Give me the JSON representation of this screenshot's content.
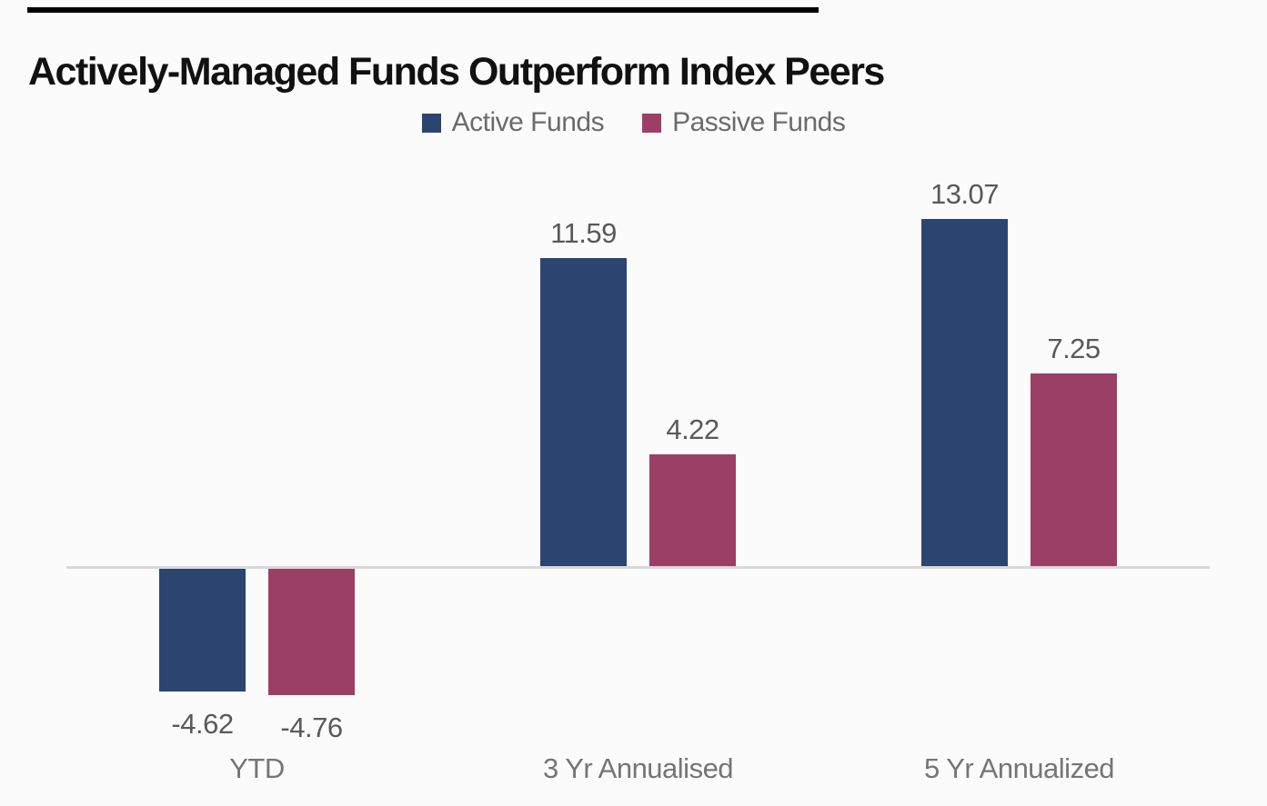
{
  "title": "Actively-Managed Funds Outperform Index Peers",
  "chart_data": {
    "type": "bar",
    "title": "Actively-Managed Funds Outperform Index Peers",
    "categories": [
      "YTD",
      "3 Yr Annualised",
      "5 Yr Annualized"
    ],
    "series": [
      {
        "name": "Active Funds",
        "color": "#2b4470",
        "values": [
          -4.62,
          11.59,
          13.07
        ]
      },
      {
        "name": "Passive Funds",
        "color": "#9c3f66",
        "values": [
          -4.76,
          4.22,
          7.25
        ]
      }
    ],
    "value_labels": {
      "Active Funds": [
        "-4.62",
        "11.59",
        "13.07"
      ],
      "Passive Funds": [
        "-4.76",
        "4.22",
        "7.25"
      ]
    },
    "xlabel": "",
    "ylabel": "",
    "ylim": [
      -6,
      15
    ],
    "grid": false,
    "zero_baseline": true,
    "legend_position": "top-center"
  },
  "colors": {
    "active": "#2b4470",
    "passive": "#9c3f66",
    "axis_line": "#d9d9d9",
    "value_label": "#595959",
    "category_label": "#757575",
    "title": "#111111",
    "top_rule": "#000000",
    "background": "#fbfbfb"
  }
}
